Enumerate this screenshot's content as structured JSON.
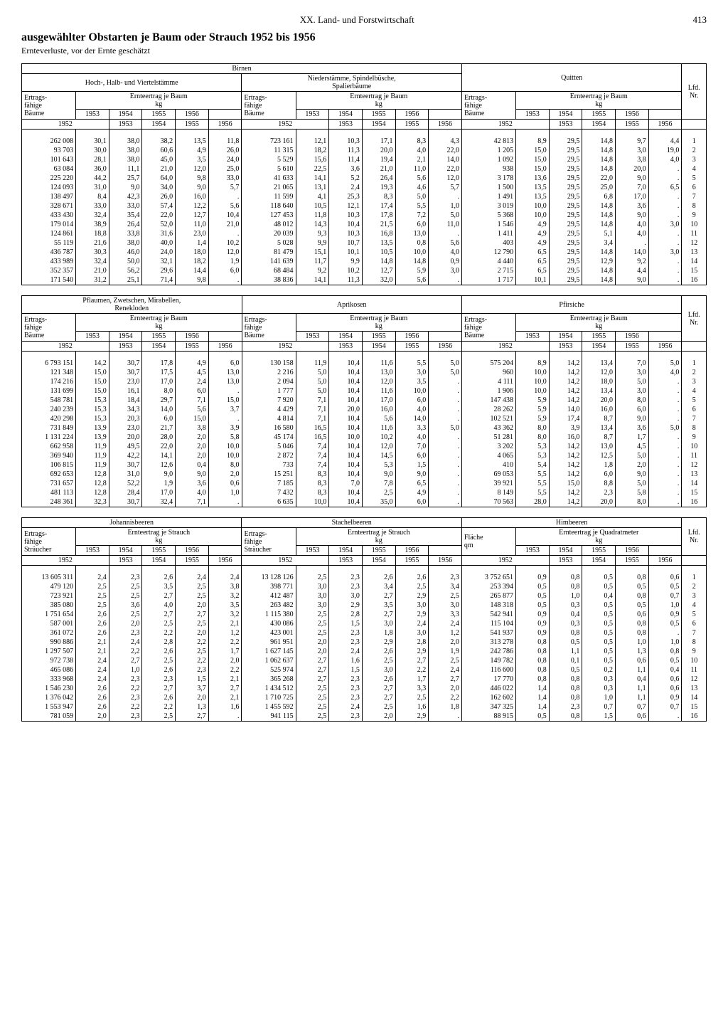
{
  "page": {
    "section": "XX. Land- und Forstwirtschaft",
    "number": "413",
    "title": "ausgewählter Obstarten je Baum oder Strauch 1952 bis 1956",
    "subtitle": "Ernteverluste, vor der Ernte geschätzt"
  },
  "headers": {
    "lfd": "Lfd.\nNr.",
    "ertrags_baum": "Ertrags-\nfähige\nBäume",
    "ertrags_strauch": "Ertrags-\nfähige\nSträucher",
    "flaeche": "Fläche\nqm",
    "ernte_baum": "Ernteertrag je Baum",
    "ernte_strauch": "Ernteertrag je Strauch",
    "ernte_qm": "Ernteertrag je Quadratmeter",
    "kg": "kg",
    "y1952": "1952",
    "y1953": "1953",
    "y1954": "1954",
    "y1955": "1955",
    "y1956": "1956"
  },
  "block1": {
    "groups": [
      {
        "name": "Birnen",
        "sub1": "Hoch-, Halb- und Viertelstämme",
        "sub2": "Niederstämme, Spindelbüsche,\nSpalierbäume"
      },
      {
        "name": "Quitten"
      }
    ],
    "rows": [
      [
        "262 008",
        "30,1",
        "38,0",
        "38,2",
        "13,5",
        "11,8",
        "723 161",
        "12,1",
        "10,3",
        "17,1",
        "8,3",
        "4,3",
        "42 813",
        "8,9",
        "29,5",
        "14,8",
        "9,7",
        "4,4",
        "1"
      ],
      [
        "93 703",
        "30,0",
        "38,0",
        "60,6",
        "4,9",
        "26,0",
        "11 315",
        "18,2",
        "11,3",
        "20,0",
        "4,0",
        "22,0",
        "1 205",
        "15,0",
        "29,5",
        "14,8",
        "3,0",
        "19,0",
        "2"
      ],
      [
        "101 643",
        "28,1",
        "38,0",
        "45,0",
        "3,5",
        "24,0",
        "5 529",
        "15,6",
        "11,4",
        "19,4",
        "2,1",
        "14,0",
        "1 092",
        "15,0",
        "29,5",
        "14,8",
        "3,8",
        "4,0",
        "3"
      ],
      [
        "63 084",
        "36,0",
        "11,1",
        "21,0",
        "12,0",
        "25,0",
        "5 610",
        "22,5",
        "3,6",
        "21,0",
        "11,0",
        "22,0",
        "938",
        "15,0",
        "29,5",
        "14,8",
        "20,0",
        ".",
        "4"
      ],
      [
        "225 220",
        "44,2",
        "25,7",
        "64,0",
        "9,8",
        "33,0",
        "41 633",
        "14,1",
        "5,2",
        "26,4",
        "5,6",
        "12,0",
        "3 178",
        "13,6",
        "29,5",
        "22,0",
        "9,0",
        ".",
        "5"
      ],
      [
        "124 093",
        "31,0",
        "9,0",
        "34,0",
        "9,0",
        "5,7",
        "21 065",
        "13,1",
        "2,4",
        "19,3",
        "4,6",
        "5,7",
        "1 500",
        "13,5",
        "29,5",
        "25,0",
        "7,0",
        "6,5",
        "6"
      ],
      [
        "138 497",
        "8,4",
        "42,3",
        "26,0",
        "16,0",
        ".",
        "11 599",
        "4,1",
        "25,3",
        "8,3",
        "5,0",
        ".",
        "1 491",
        "13,5",
        "29,5",
        "6,8",
        "17,0",
        ".",
        "7"
      ],
      [
        "328 671",
        "33,0",
        "33,0",
        "57,4",
        "12,2",
        "5,6",
        "118 640",
        "10,5",
        "12,1",
        "17,4",
        "5,5",
        "1,0",
        "3 019",
        "10,0",
        "29,5",
        "14,8",
        "3,6",
        ".",
        "8"
      ],
      [
        "433 430",
        "32,4",
        "35,4",
        "22,0",
        "12,7",
        "10,4",
        "127 453",
        "11,8",
        "10,3",
        "17,8",
        "7,2",
        "5,0",
        "5 368",
        "10,0",
        "29,5",
        "14,8",
        "9,0",
        ".",
        "9"
      ],
      [
        "179 014",
        "38,9",
        "26,4",
        "52,0",
        "11,0",
        "21,0",
        "48 012",
        "14,3",
        "10,4",
        "21,5",
        "6,0",
        "11,0",
        "1 546",
        "4,9",
        "29,5",
        "14,8",
        "4,0",
        "3,0",
        "10"
      ],
      [
        "124 861",
        "18,8",
        "33,8",
        "31,6",
        "23,0",
        ".",
        "20 039",
        "9,3",
        "10,3",
        "16,8",
        "13,0",
        ".",
        "1 411",
        "4,9",
        "29,5",
        "5,1",
        "4,0",
        ".",
        "11"
      ],
      [
        "55 119",
        "21,6",
        "38,0",
        "40,0",
        "1,4",
        "10,2",
        "5 028",
        "9,9",
        "10,7",
        "13,5",
        "0,8",
        "5,6",
        "403",
        "4,9",
        "29,5",
        "3,4",
        ".",
        ".",
        "12"
      ],
      [
        "436 787",
        "30,3",
        "46,0",
        "24,0",
        "18,0",
        "12,0",
        "81 479",
        "15,1",
        "10,1",
        "10,5",
        "10,0",
        "4,0",
        "12 790",
        "6,5",
        "29,5",
        "14,8",
        "14,0",
        "3,0",
        "13"
      ],
      [
        "433 989",
        "32,4",
        "50,0",
        "32,1",
        "18,2",
        "1,9",
        "141 639",
        "11,7",
        "9,9",
        "14,8",
        "14,8",
        "0,9",
        "4 440",
        "6,5",
        "29,5",
        "12,9",
        "9,2",
        ".",
        "14"
      ],
      [
        "352 357",
        "21,0",
        "56,2",
        "29,6",
        "14,4",
        "6,0",
        "68 484",
        "9,2",
        "10,2",
        "12,7",
        "5,9",
        "3,0",
        "2 715",
        "6,5",
        "29,5",
        "14,8",
        "4,4",
        ".",
        "15"
      ],
      [
        "171 540",
        "31,2",
        "25,1",
        "71,4",
        "9,8",
        ".",
        "38 836",
        "14,1",
        "11,3",
        "32,0",
        "5,6",
        ".",
        "1 717",
        "10,1",
        "29,5",
        "14,8",
        "9,0",
        ".",
        "16"
      ]
    ]
  },
  "block2": {
    "groups": [
      {
        "name": "Pflaumen, Zwetschen, Mirabellen,\nRenekloden"
      },
      {
        "name": "Aprikosen"
      },
      {
        "name": "Pfirsiche"
      }
    ],
    "rows": [
      [
        "6 793 151",
        "14,2",
        "30,7",
        "17,8",
        "4,9",
        "6,0",
        "130 158",
        "11,9",
        "10,4",
        "11,6",
        "5,5",
        "5,0",
        "575 204",
        "8,9",
        "14,2",
        "13,4",
        "7,0",
        "5,0",
        "1"
      ],
      [
        "121 348",
        "15,0",
        "30,7",
        "17,5",
        "4,5",
        "13,0",
        "2 216",
        "5,0",
        "10,4",
        "13,0",
        "3,0",
        "5,0",
        "960",
        "10,0",
        "14,2",
        "12,0",
        "3,0",
        "4,0",
        "2"
      ],
      [
        "174 216",
        "15,0",
        "23,0",
        "17,0",
        "2,4",
        "13,0",
        "2 094",
        "5,0",
        "10,4",
        "12,0",
        "3,5",
        ".",
        "4 111",
        "10,0",
        "14,2",
        "18,0",
        "5,0",
        ".",
        "3"
      ],
      [
        "131 699",
        "15,0",
        "16,1",
        "8,0",
        "6,0",
        ".",
        "1 777",
        "5,0",
        "10,4",
        "11,6",
        "10,0",
        ".",
        "1 906",
        "10,0",
        "14,2",
        "13,4",
        "3,0",
        ".",
        "4"
      ],
      [
        "548 781",
        "15,3",
        "18,4",
        "29,7",
        "7,1",
        "15,0",
        "7 920",
        "7,1",
        "10,4",
        "17,0",
        "6,0",
        ".",
        "147 438",
        "5,9",
        "14,2",
        "20,0",
        "8,0",
        ".",
        "5"
      ],
      [
        "240 239",
        "15,3",
        "34,3",
        "14,0",
        "5,6",
        "3,7",
        "4 429",
        "7,1",
        "20,0",
        "16,0",
        "4,0",
        ".",
        "28 262",
        "5,9",
        "14,0",
        "16,0",
        "6,0",
        ".",
        "6"
      ],
      [
        "420 298",
        "15,3",
        "20,3",
        "6,0",
        "15,0",
        ".",
        "4 814",
        "7,1",
        "10,4",
        "5,6",
        "14,0",
        ".",
        "102 521",
        "5,9",
        "17,4",
        "8,7",
        "9,0",
        ".",
        "7"
      ],
      [
        "731 849",
        "13,9",
        "23,0",
        "21,7",
        "3,8",
        "3,9",
        "16 580",
        "16,5",
        "10,4",
        "11,6",
        "3,3",
        "5,0",
        "43 362",
        "8,0",
        "3,9",
        "13,4",
        "3,6",
        "5,0",
        "8"
      ],
      [
        "1 131 224",
        "13,9",
        "20,0",
        "28,0",
        "2,0",
        "5,8",
        "45 174",
        "16,5",
        "10,0",
        "10,2",
        "4,0",
        ".",
        "51 281",
        "8,0",
        "16,0",
        "8,7",
        "1,7",
        ".",
        "9"
      ],
      [
        "662 958",
        "11,9",
        "49,5",
        "22,0",
        "2,0",
        "10,0",
        "5 046",
        "7,4",
        "10,4",
        "12,0",
        "7,0",
        ".",
        "3 202",
        "5,3",
        "14,2",
        "13,0",
        "4,5",
        ".",
        "10"
      ],
      [
        "369 940",
        "11,9",
        "42,2",
        "14,1",
        "2,0",
        "10,0",
        "2 872",
        "7,4",
        "10,4",
        "14,5",
        "6,0",
        ".",
        "4 065",
        "5,3",
        "14,2",
        "12,5",
        "5,0",
        ".",
        "11"
      ],
      [
        "106 815",
        "11,9",
        "30,7",
        "12,6",
        "0,4",
        "8,0",
        "733",
        "7,4",
        "10,4",
        "5,3",
        "1,5",
        ".",
        "410",
        "5,4",
        "14,2",
        "1,8",
        "2,0",
        ".",
        "12"
      ],
      [
        "692 653",
        "12,8",
        "31,0",
        "9,0",
        "9,0",
        "2,0",
        "15 251",
        "8,3",
        "10,4",
        "9,0",
        "9,0",
        ".",
        "69 053",
        "5,5",
        "14,2",
        "6,0",
        "9,0",
        ".",
        "13"
      ],
      [
        "731 657",
        "12,8",
        "52,2",
        "1,9",
        "3,6",
        "0,6",
        "7 185",
        "8,3",
        "7,0",
        "7,8",
        "6,5",
        ".",
        "39 921",
        "5,5",
        "15,0",
        "8,8",
        "5,0",
        ".",
        "14"
      ],
      [
        "481 113",
        "12,8",
        "28,4",
        "17,0",
        "4,0",
        "1,0",
        "7 432",
        "8,3",
        "10,4",
        "2,5",
        "4,9",
        ".",
        "8 149",
        "5,5",
        "14,2",
        "2,3",
        "5,8",
        ".",
        "15"
      ],
      [
        "248 361",
        "32,3",
        "30,7",
        "32,4",
        "7,1",
        ".",
        "6 635",
        "10,0",
        "10,4",
        "35,0",
        "6,0",
        ".",
        "70 563",
        "28,0",
        "14,2",
        "20,0",
        "8,0",
        ".",
        "16"
      ]
    ]
  },
  "block3": {
    "groups": [
      {
        "name": "Johannisbeeren"
      },
      {
        "name": "Stachelbeeren"
      },
      {
        "name": "Himbeeren"
      }
    ],
    "rows": [
      [
        "13 605 311",
        "2,4",
        "2,3",
        "2,6",
        "2,4",
        "2,4",
        "13 128 126",
        "2,5",
        "2,3",
        "2,6",
        "2,6",
        "2,3",
        "3 752 651",
        "0,9",
        "0,8",
        "0,5",
        "0,8",
        "0,6",
        "1"
      ],
      [
        "479 120",
        "2,5",
        "2,5",
        "3,5",
        "2,5",
        "3,8",
        "398 771",
        "3,0",
        "2,3",
        "3,4",
        "2,5",
        "3,4",
        "253 394",
        "0,5",
        "0,8",
        "0,5",
        "0,5",
        "0,5",
        "2"
      ],
      [
        "723 921",
        "2,5",
        "2,5",
        "2,7",
        "2,5",
        "3,2",
        "412 487",
        "3,0",
        "3,0",
        "2,7",
        "2,9",
        "2,5",
        "265 877",
        "0,5",
        "1,0",
        "0,4",
        "0,8",
        "0,7",
        "3"
      ],
      [
        "385 080",
        "2,5",
        "3,6",
        "4,0",
        "2,0",
        "3,5",
        "263 482",
        "3,0",
        "2,9",
        "3,5",
        "3,0",
        "3,0",
        "148 318",
        "0,5",
        "0,3",
        "0,5",
        "0,5",
        "1,0",
        "4"
      ],
      [
        "1 751 654",
        "2,6",
        "2,5",
        "2,7",
        "2,7",
        "3,2",
        "1 115 380",
        "2,5",
        "2,8",
        "2,7",
        "2,9",
        "3,3",
        "542 941",
        "0,9",
        "0,4",
        "0,5",
        "0,6",
        "0,9",
        "5"
      ],
      [
        "587 001",
        "2,6",
        "2,0",
        "2,5",
        "2,5",
        "2,1",
        "430 086",
        "2,5",
        "1,5",
        "3,0",
        "2,4",
        "2,4",
        "115 104",
        "0,9",
        "0,3",
        "0,5",
        "0,8",
        "0,5",
        "6"
      ],
      [
        "361 072",
        "2,6",
        "2,3",
        "2,2",
        "2,0",
        "1,2",
        "423 001",
        "2,5",
        "2,3",
        "1,8",
        "3,0",
        "1,2",
        "541 937",
        "0,9",
        "0,8",
        "0,5",
        "0,8",
        ".",
        "7"
      ],
      [
        "990 886",
        "2,1",
        "2,4",
        "2,8",
        "2,2",
        "2,2",
        "961 951",
        "2,0",
        "2,3",
        "2,9",
        "2,8",
        "2,0",
        "313 278",
        "0,8",
        "0,5",
        "0,5",
        "1,0",
        "1,0",
        "8"
      ],
      [
        "1 297 507",
        "2,1",
        "2,2",
        "2,6",
        "2,5",
        "1,7",
        "1 627 145",
        "2,0",
        "2,4",
        "2,6",
        "2,9",
        "1,9",
        "242 786",
        "0,8",
        "1,1",
        "0,5",
        "1,3",
        "0,8",
        "9"
      ],
      [
        "972 738",
        "2,4",
        "2,7",
        "2,5",
        "2,2",
        "2,0",
        "1 062 637",
        "2,7",
        "1,6",
        "2,5",
        "2,7",
        "2,5",
        "149 782",
        "0,8",
        "0,1",
        "0,5",
        "0,6",
        "0,5",
        "10"
      ],
      [
        "465 086",
        "2,4",
        "1,0",
        "2,6",
        "2,3",
        "2,2",
        "525 974",
        "2,7",
        "1,5",
        "3,0",
        "2,2",
        "2,4",
        "116 600",
        "0,8",
        "0,5",
        "0,2",
        "1,1",
        "0,4",
        "11"
      ],
      [
        "333 968",
        "2,4",
        "2,3",
        "2,3",
        "1,5",
        "2,1",
        "365 268",
        "2,7",
        "2,3",
        "2,6",
        "1,7",
        "2,7",
        "17 770",
        "0,8",
        "0,8",
        "0,3",
        "0,4",
        "0,6",
        "12"
      ],
      [
        "1 546 230",
        "2,6",
        "2,2",
        "2,7",
        "3,7",
        "2,7",
        "1 434 512",
        "2,5",
        "2,3",
        "2,7",
        "3,3",
        "2,0",
        "446 022",
        "1,4",
        "0,8",
        "0,3",
        "1,1",
        "0,6",
        "13"
      ],
      [
        "1 376 042",
        "2,6",
        "2,3",
        "2,6",
        "2,0",
        "2,1",
        "1 710 725",
        "2,5",
        "2,3",
        "2,7",
        "2,5",
        "2,2",
        "162 602",
        "1,4",
        "0,8",
        "1,0",
        "1,1",
        "0,9",
        "14"
      ],
      [
        "1 553 947",
        "2,6",
        "2,2",
        "2,2",
        "1,3",
        "1,6",
        "1 455 592",
        "2,5",
        "2,4",
        "2,5",
        "1,6",
        "1,8",
        "347 325",
        "1,4",
        "2,3",
        "0,7",
        "0,7",
        "0,7",
        "15"
      ],
      [
        "781 059",
        "2,0",
        "2,3",
        "2,5",
        "2,7",
        ".",
        "941 115",
        "2,5",
        "2,3",
        "2,0",
        "2,9",
        ".",
        "88 915",
        "0,5",
        "0,8",
        "1,5",
        "0,6",
        ".",
        "16"
      ]
    ]
  }
}
